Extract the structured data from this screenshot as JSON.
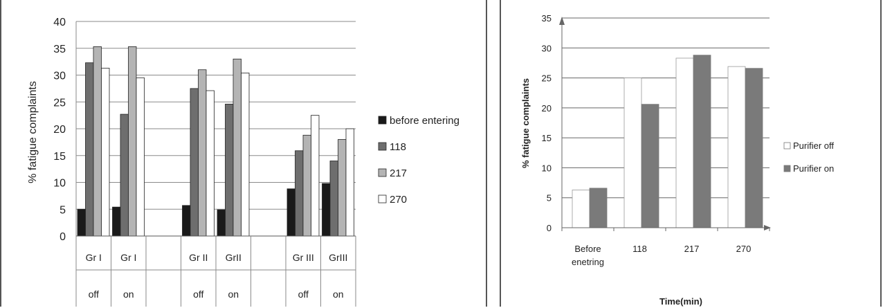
{
  "chart_data": [
    {
      "type": "bar",
      "ylabel": "% fatigue complaints",
      "xlabel": "",
      "ylim": [
        0,
        40
      ],
      "yticks": [
        "0",
        "5",
        "10",
        "15",
        "20",
        "25",
        "30",
        "35",
        "40"
      ],
      "grid": true,
      "legend_position": "right",
      "groups": [
        {
          "line1": "Gr I",
          "line2": "off"
        },
        {
          "line1": "Gr I",
          "line2": "on"
        },
        {
          "line1": "",
          "line2": ""
        },
        {
          "line1": "Gr II",
          "line2": "off"
        },
        {
          "line1": "GrII",
          "line2": "on"
        },
        {
          "line1": "",
          "line2": ""
        },
        {
          "line1": "Gr III",
          "line2": "off"
        },
        {
          "line1": "GrIII",
          "line2": "on"
        }
      ],
      "series": [
        {
          "name": "before entering",
          "color": "#1a1a1a",
          "values": [
            5.0,
            5.4,
            null,
            5.7,
            4.9,
            null,
            8.8,
            9.8
          ]
        },
        {
          "name": "118",
          "color": "#6e6e6e",
          "values": [
            32.3,
            22.7,
            null,
            27.5,
            24.6,
            null,
            15.9,
            14.0
          ]
        },
        {
          "name": "217",
          "color": "#b4b4b4",
          "values": [
            35.3,
            35.3,
            null,
            31.0,
            33.0,
            null,
            18.8,
            18.0
          ]
        },
        {
          "name": "270",
          "color": "#ffffff",
          "values": [
            31.3,
            29.5,
            null,
            27.1,
            30.4,
            null,
            22.5,
            20.0
          ]
        }
      ]
    },
    {
      "type": "bar",
      "ylabel": "% fatigue complaints",
      "xlabel": "Time(min)",
      "ylim": [
        0,
        35
      ],
      "yticks": [
        "0",
        "5",
        "10",
        "15",
        "20",
        "25",
        "30",
        "35"
      ],
      "grid": true,
      "legend_position": "right",
      "categories": [
        [
          "Before",
          "enetring"
        ],
        [
          "118"
        ],
        [
          "217"
        ],
        [
          "270"
        ]
      ],
      "series": [
        {
          "name": "Purifier off",
          "color": "#ffffff",
          "values": [
            6.3,
            25.0,
            28.3,
            26.9
          ]
        },
        {
          "name": "Purifier on",
          "color": "#7a7a7a",
          "values": [
            6.6,
            20.6,
            28.8,
            26.6
          ]
        }
      ]
    }
  ]
}
